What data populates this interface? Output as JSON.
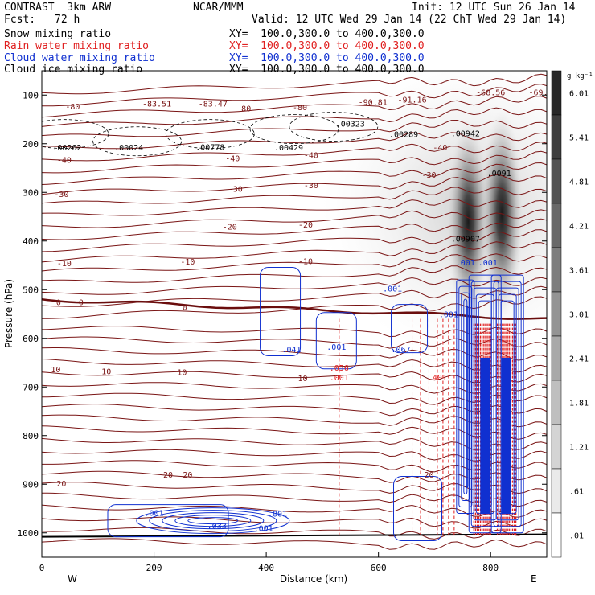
{
  "header": {
    "model_line": "CONTRAST  3km ARW",
    "org": "NCAR/MMM",
    "init": "Init: 12 UTC Sun 26 Jan 14",
    "fcst_label": "Fcst:",
    "fcst_value": "72 h",
    "valid": "Valid: 12 UTC Wed 29 Jan 14 (22 ChT Wed 29 Jan 14)"
  },
  "legend": [
    {
      "name": "Snow mixing ratio",
      "xy": "XY=  100.0,300.0 to 400.0,300.0",
      "color": "#000000"
    },
    {
      "name": "Rain water mixing ratio",
      "xy": "XY=  100.0,300.0 to 400.0,300.0",
      "color": "#e02020"
    },
    {
      "name": "Cloud water mixing ratio",
      "xy": "XY=  100.0,300.0 to 400.0,300.0",
      "color": "#1030d0"
    },
    {
      "name": "Cloud ice mixing ratio",
      "xy": "XY=  100.0,300.0 to 400.0,300.0",
      "color": "#000000"
    }
  ],
  "colorbar": {
    "unit": "g kg⁻¹",
    "levels": [
      "6.01",
      "5.41",
      "4.81",
      "4.21",
      "3.61",
      "3.01",
      "2.41",
      "1.81",
      "1.21",
      ".61",
      ".01"
    ]
  },
  "chart_data": {
    "type": "heatmap",
    "xlabel": "Distance (km)",
    "ylabel": "Pressure (hPa)",
    "xlim": [
      0,
      900
    ],
    "ylim": [
      1050,
      50
    ],
    "x_ticks": [
      0,
      200,
      400,
      600,
      800
    ],
    "y_ticks": [
      100,
      200,
      300,
      400,
      500,
      600,
      700,
      800,
      900,
      1000
    ],
    "x_end_labels": {
      "left": "W",
      "right": "E"
    },
    "temperature_labels": [
      {
        "text": "-80",
        "x": 55,
        "p": 123
      },
      {
        "text": "-80",
        "x": 360,
        "p": 127
      },
      {
        "text": "-80",
        "x": 460,
        "p": 124
      },
      {
        "text": "-83.51",
        "x": 205,
        "p": 117
      },
      {
        "text": "-83.47",
        "x": 305,
        "p": 117
      },
      {
        "text": "-90.81",
        "x": 590,
        "p": 114
      },
      {
        "text": "-91.16",
        "x": 660,
        "p": 109
      },
      {
        "text": "-68.56",
        "x": 800,
        "p": 94
      },
      {
        "text": "-69.",
        "x": 885,
        "p": 94
      },
      {
        "text": "-40",
        "x": 40,
        "p": 233
      },
      {
        "text": "-40",
        "x": 340,
        "p": 229
      },
      {
        "text": "-40",
        "x": 480,
        "p": 223
      },
      {
        "text": "-40",
        "x": 710,
        "p": 207
      },
      {
        "text": "-30",
        "x": 35,
        "p": 303
      },
      {
        "text": "-30",
        "x": 345,
        "p": 292
      },
      {
        "text": "-30",
        "x": 480,
        "p": 285
      },
      {
        "text": "-30",
        "x": 690,
        "p": 263
      },
      {
        "text": "-20",
        "x": 335,
        "p": 370
      },
      {
        "text": "-20",
        "x": 470,
        "p": 366
      },
      {
        "text": "-10",
        "x": 40,
        "p": 445
      },
      {
        "text": "-10",
        "x": 260,
        "p": 442
      },
      {
        "text": "-10",
        "x": 470,
        "p": 441
      },
      {
        "text": "0",
        "x": 30,
        "p": 525
      },
      {
        "text": "0",
        "x": 70,
        "p": 525
      },
      {
        "text": "0",
        "x": 255,
        "p": 535
      },
      {
        "text": "10",
        "x": 25,
        "p": 663
      },
      {
        "text": "10",
        "x": 115,
        "p": 667
      },
      {
        "text": "10",
        "x": 250,
        "p": 669
      },
      {
        "text": "10",
        "x": 465,
        "p": 681
      },
      {
        "text": "20",
        "x": 35,
        "p": 898
      },
      {
        "text": "20",
        "x": 225,
        "p": 880
      },
      {
        "text": "20",
        "x": 260,
        "p": 880
      },
      {
        "text": "20",
        "x": 690,
        "p": 880
      }
    ],
    "snow_extrema_labels": [
      {
        "text": ".00323",
        "x": 550,
        "p": 158
      },
      {
        "text": ".00289",
        "x": 645,
        "p": 180
      },
      {
        "text": ".00942",
        "x": 755,
        "p": 178
      },
      {
        "text": ".0091",
        "x": 815,
        "p": 260
      },
      {
        "text": ".00907",
        "x": 755,
        "p": 395
      }
    ],
    "cloud_ice_extrema_labels": [
      {
        "text": ".00262",
        "x": 45,
        "p": 207
      },
      {
        "text": ".00024",
        "x": 155,
        "p": 207
      },
      {
        "text": ".00778",
        "x": 300,
        "p": 206
      },
      {
        "text": ".00429",
        "x": 440,
        "p": 207
      }
    ],
    "cloud_water_labels": [
      {
        "text": ".001",
        "x": 625,
        "p": 497
      },
      {
        "text": ".041",
        "x": 445,
        "p": 622
      },
      {
        "text": ".001",
        "x": 525,
        "p": 617
      },
      {
        "text": ".067",
        "x": 640,
        "p": 622
      },
      {
        "text": ".001",
        "x": 755,
        "p": 443
      },
      {
        "text": ".001",
        "x": 795,
        "p": 443
      },
      {
        "text": ".001",
        "x": 200,
        "p": 958
      },
      {
        "text": ".033",
        "x": 312,
        "p": 985
      },
      {
        "text": ".001",
        "x": 420,
        "p": 960
      },
      {
        "text": ".001",
        "x": 395,
        "p": 990
      },
      {
        "text": ".001",
        "x": 725,
        "p": 550
      }
    ],
    "rain_labels": [
      {
        "text": ".056",
        "x": 530,
        "p": 660
      },
      {
        "text": ".001",
        "x": 530,
        "p": 680
      },
      {
        "text": ".401",
        "x": 705,
        "p": 680
      }
    ],
    "snow_shading_cores": [
      {
        "x": 760,
        "p_top": 150,
        "p_bottom": 570,
        "max": 6.0
      },
      {
        "x": 820,
        "p_top": 130,
        "p_bottom": 560,
        "max": 6.0
      }
    ]
  }
}
